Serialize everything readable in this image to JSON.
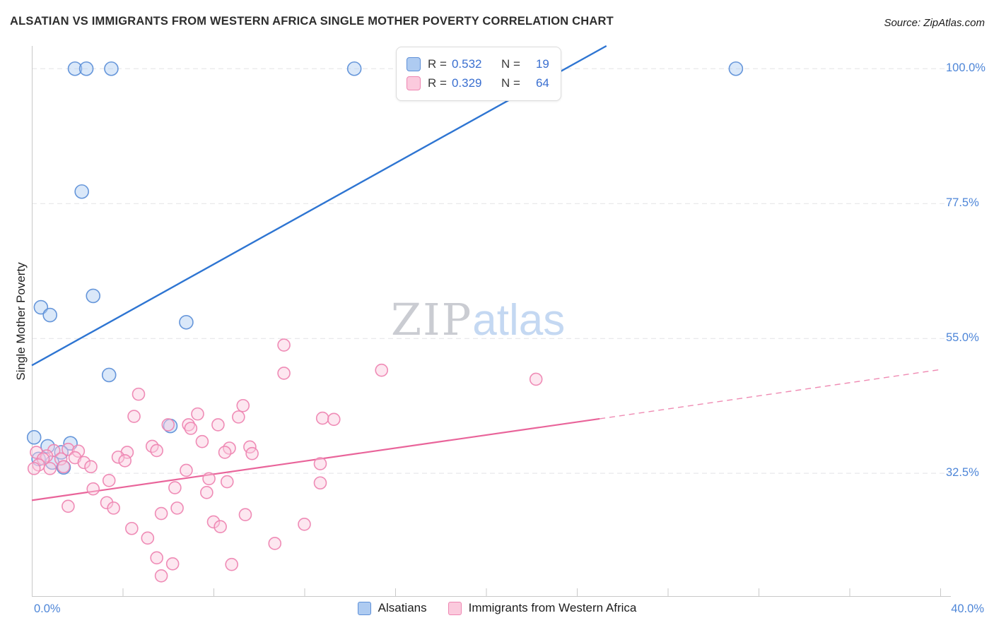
{
  "header": {
    "title": "ALSATIAN VS IMMIGRANTS FROM WESTERN AFRICA SINGLE MOTHER POVERTY CORRELATION CHART",
    "source": "Source: ZipAtlas.com"
  },
  "watermark": {
    "zip": "ZIP",
    "atlas": "atlas"
  },
  "stats_legend": {
    "rows": [
      {
        "series": "Alsatians",
        "r_label": "R =",
        "r_value": "0.532",
        "n_label": "N =",
        "n_value": "19"
      },
      {
        "series": "Immigrants from Western Africa",
        "r_label": "R =",
        "r_value": "0.329",
        "n_label": "N =",
        "n_value": "64"
      }
    ]
  },
  "axes": {
    "y_label": "Single Mother Poverty",
    "x_min_label": "0.0%",
    "x_max_label": "40.0%"
  },
  "bottom_legend": [
    {
      "label": "Alsatians"
    },
    {
      "label": "Immigrants from Western Africa"
    }
  ],
  "colors": {
    "blue_fill": "#AECBF1",
    "blue_stroke": "#5E90D8",
    "blue_line": "#2E75D2",
    "pink_fill": "#FBCADD",
    "pink_stroke": "#EE86B2",
    "pink_line": "#E9649A",
    "axis_label_blue": "#4E86D8",
    "stat_value_blue": "#3A6FD0",
    "grid": "#E2E2E6",
    "axis_line": "#C9C9C9"
  },
  "chart_data": {
    "type": "scatter",
    "title": "ALSATIAN VS IMMIGRANTS FROM WESTERN AFRICA SINGLE MOTHER POVERTY CORRELATION CHART",
    "ylabel": "Single Mother Poverty",
    "xlim": [
      0,
      40
    ],
    "ylim": [
      11.9,
      103.8
    ],
    "x_ticks": [
      4,
      8,
      12,
      16,
      20,
      24,
      28,
      32,
      36,
      40
    ],
    "y_gridlines": [
      {
        "value": 100.0,
        "label": "100.0%"
      },
      {
        "value": 77.5,
        "label": "77.5%"
      },
      {
        "value": 55.0,
        "label": "55.0%"
      },
      {
        "value": 32.5,
        "label": "32.5%"
      }
    ],
    "legend_position": "top-center",
    "grid": true,
    "series": [
      {
        "name": "Alsatians",
        "R": 0.532,
        "N": 19,
        "points": [
          [
            1.9,
            100
          ],
          [
            2.4,
            100
          ],
          [
            3.5,
            100
          ],
          [
            14.2,
            100
          ],
          [
            31.0,
            100
          ],
          [
            2.2,
            79.5
          ],
          [
            2.7,
            62.1
          ],
          [
            0.4,
            60.2
          ],
          [
            0.8,
            58.9
          ],
          [
            6.8,
            57.7
          ],
          [
            3.4,
            48.9
          ],
          [
            6.1,
            40.4
          ],
          [
            0.1,
            38.5
          ],
          [
            1.7,
            37.5
          ],
          [
            0.7,
            37.0
          ],
          [
            1.3,
            36.0
          ],
          [
            0.3,
            34.9
          ],
          [
            0.9,
            34.3
          ],
          [
            1.4,
            33.5
          ]
        ]
      },
      {
        "name": "Immigrants from Western Africa",
        "R": 0.329,
        "N": 64,
        "points": [
          [
            11.1,
            53.9
          ],
          [
            15.4,
            49.7
          ],
          [
            11.1,
            49.2
          ],
          [
            22.2,
            48.2
          ],
          [
            4.7,
            45.7
          ],
          [
            9.3,
            43.8
          ],
          [
            7.3,
            42.4
          ],
          [
            4.5,
            42.0
          ],
          [
            9.1,
            41.9
          ],
          [
            12.8,
            41.7
          ],
          [
            13.3,
            41.5
          ],
          [
            6.0,
            40.6
          ],
          [
            6.9,
            40.6
          ],
          [
            8.2,
            40.6
          ],
          [
            7.0,
            40.0
          ],
          [
            7.5,
            37.8
          ],
          [
            5.3,
            37.0
          ],
          [
            8.7,
            36.7
          ],
          [
            9.6,
            36.9
          ],
          [
            1.6,
            36.5
          ],
          [
            5.5,
            36.3
          ],
          [
            4.2,
            36.0
          ],
          [
            8.5,
            36.0
          ],
          [
            0.2,
            36.0
          ],
          [
            2.05,
            36.2
          ],
          [
            0.97,
            36.3
          ],
          [
            9.7,
            35.8
          ],
          [
            0.65,
            35.4
          ],
          [
            3.8,
            35.2
          ],
          [
            1.9,
            35.1
          ],
          [
            0.5,
            34.9
          ],
          [
            1.28,
            34.9
          ],
          [
            4.1,
            34.6
          ],
          [
            2.3,
            34.3
          ],
          [
            12.7,
            34.1
          ],
          [
            0.3,
            33.9
          ],
          [
            2.6,
            33.6
          ],
          [
            1.4,
            33.6
          ],
          [
            0.1,
            33.3
          ],
          [
            0.8,
            33.3
          ],
          [
            6.8,
            33.0
          ],
          [
            7.8,
            31.6
          ],
          [
            3.4,
            31.3
          ],
          [
            8.6,
            31.1
          ],
          [
            12.7,
            30.9
          ],
          [
            6.3,
            30.1
          ],
          [
            2.7,
            29.9
          ],
          [
            7.7,
            29.3
          ],
          [
            3.3,
            27.6
          ],
          [
            1.6,
            27.0
          ],
          [
            3.6,
            26.7
          ],
          [
            6.4,
            26.7
          ],
          [
            5.7,
            25.8
          ],
          [
            9.4,
            25.6
          ],
          [
            8.0,
            24.4
          ],
          [
            12.0,
            24.0
          ],
          [
            8.3,
            23.6
          ],
          [
            4.4,
            23.3
          ],
          [
            5.1,
            21.7
          ],
          [
            10.7,
            20.8
          ],
          [
            5.5,
            18.4
          ],
          [
            6.2,
            17.4
          ],
          [
            8.8,
            17.3
          ],
          [
            5.7,
            15.4
          ]
        ]
      }
    ],
    "trend_lines": [
      {
        "series": "Alsatians",
        "style": "solid",
        "x1": 0,
        "y1": 50.5,
        "x2": 25.3,
        "y2": 103.8
      },
      {
        "series": "Immigrants from Western Africa",
        "style": "solid",
        "x1": 0,
        "y1": 28.0,
        "x2": 25.0,
        "y2": 41.6
      },
      {
        "series": "Immigrants from Western Africa",
        "style": "dashed",
        "x1": 25.0,
        "y1": 41.6,
        "x2": 40.0,
        "y2": 49.8
      }
    ]
  }
}
